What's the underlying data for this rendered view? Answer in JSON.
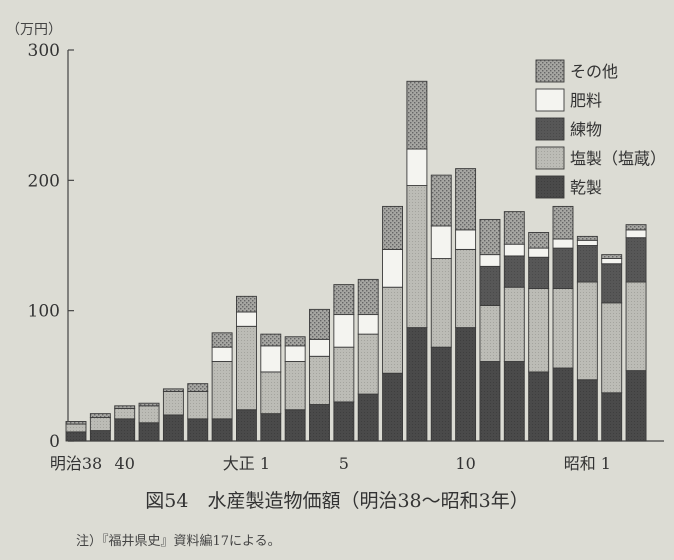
{
  "chart_data": {
    "type": "bar",
    "stacked": true,
    "unit_label": "（万円）",
    "ylim": [
      0,
      300
    ],
    "yticks": [
      0,
      100,
      200,
      300
    ],
    "x_tick_labels": [
      {
        "index": 0,
        "label": "明治38"
      },
      {
        "index": 2,
        "label": "40"
      },
      {
        "index": 7,
        "label": "大正 1"
      },
      {
        "index": 11,
        "label": "5"
      },
      {
        "index": 16,
        "label": "10"
      },
      {
        "index": 21,
        "label": "昭和 1"
      }
    ],
    "categories": [
      "明治38",
      "明治39",
      "明治40",
      "明治41",
      "明治42",
      "明治43",
      "明治44",
      "大正1",
      "大正2",
      "大正3",
      "大正4",
      "大正5",
      "大正6",
      "大正7",
      "大正8",
      "大正9",
      "大正10",
      "大正11",
      "大正12",
      "大正13",
      "大正14",
      "昭和1",
      "昭和2",
      "昭和3"
    ],
    "series": [
      {
        "name": "乾製",
        "color": "#4a4a4a",
        "pattern": "solid-dark",
        "values": [
          7,
          8,
          17,
          14,
          20,
          17,
          17,
          24,
          21,
          24,
          28,
          30,
          36,
          52,
          87,
          72,
          87,
          61,
          61,
          53,
          56,
          47,
          37,
          54
        ]
      },
      {
        "name": "塩製（塩蔵）",
        "color": "#b4b4ae",
        "pattern": "light",
        "values": [
          6,
          10,
          8,
          13,
          18,
          21,
          44,
          64,
          32,
          37,
          37,
          42,
          46,
          66,
          109,
          68,
          60,
          43,
          57,
          64,
          61,
          75,
          69,
          68
        ]
      },
      {
        "name": "練物",
        "color": "#555555",
        "pattern": "solid-mid",
        "values": [
          0,
          0,
          0,
          0,
          0,
          0,
          0,
          0,
          0,
          0,
          0,
          0,
          0,
          0,
          0,
          0,
          0,
          30,
          24,
          24,
          31,
          28,
          30,
          34
        ]
      },
      {
        "name": "肥料",
        "color": "#f4f4f0",
        "pattern": "white",
        "values": [
          0,
          0,
          0,
          0,
          0,
          0,
          11,
          11,
          20,
          12,
          13,
          25,
          15,
          29,
          28,
          25,
          15,
          9,
          9,
          7,
          7,
          4,
          4,
          6
        ]
      },
      {
        "name": "その他",
        "color": "#9a9a96",
        "pattern": "dotted",
        "values": [
          2,
          3,
          2,
          2,
          2,
          6,
          11,
          12,
          9,
          7,
          23,
          23,
          27,
          33,
          52,
          39,
          47,
          27,
          25,
          12,
          25,
          3,
          3,
          4
        ]
      }
    ],
    "legend_position": "top-right",
    "grid": false
  },
  "caption": "図54　水産製造物価額（明治38〜昭和3年）",
  "note": "注）『福井県史』資料編17による。"
}
